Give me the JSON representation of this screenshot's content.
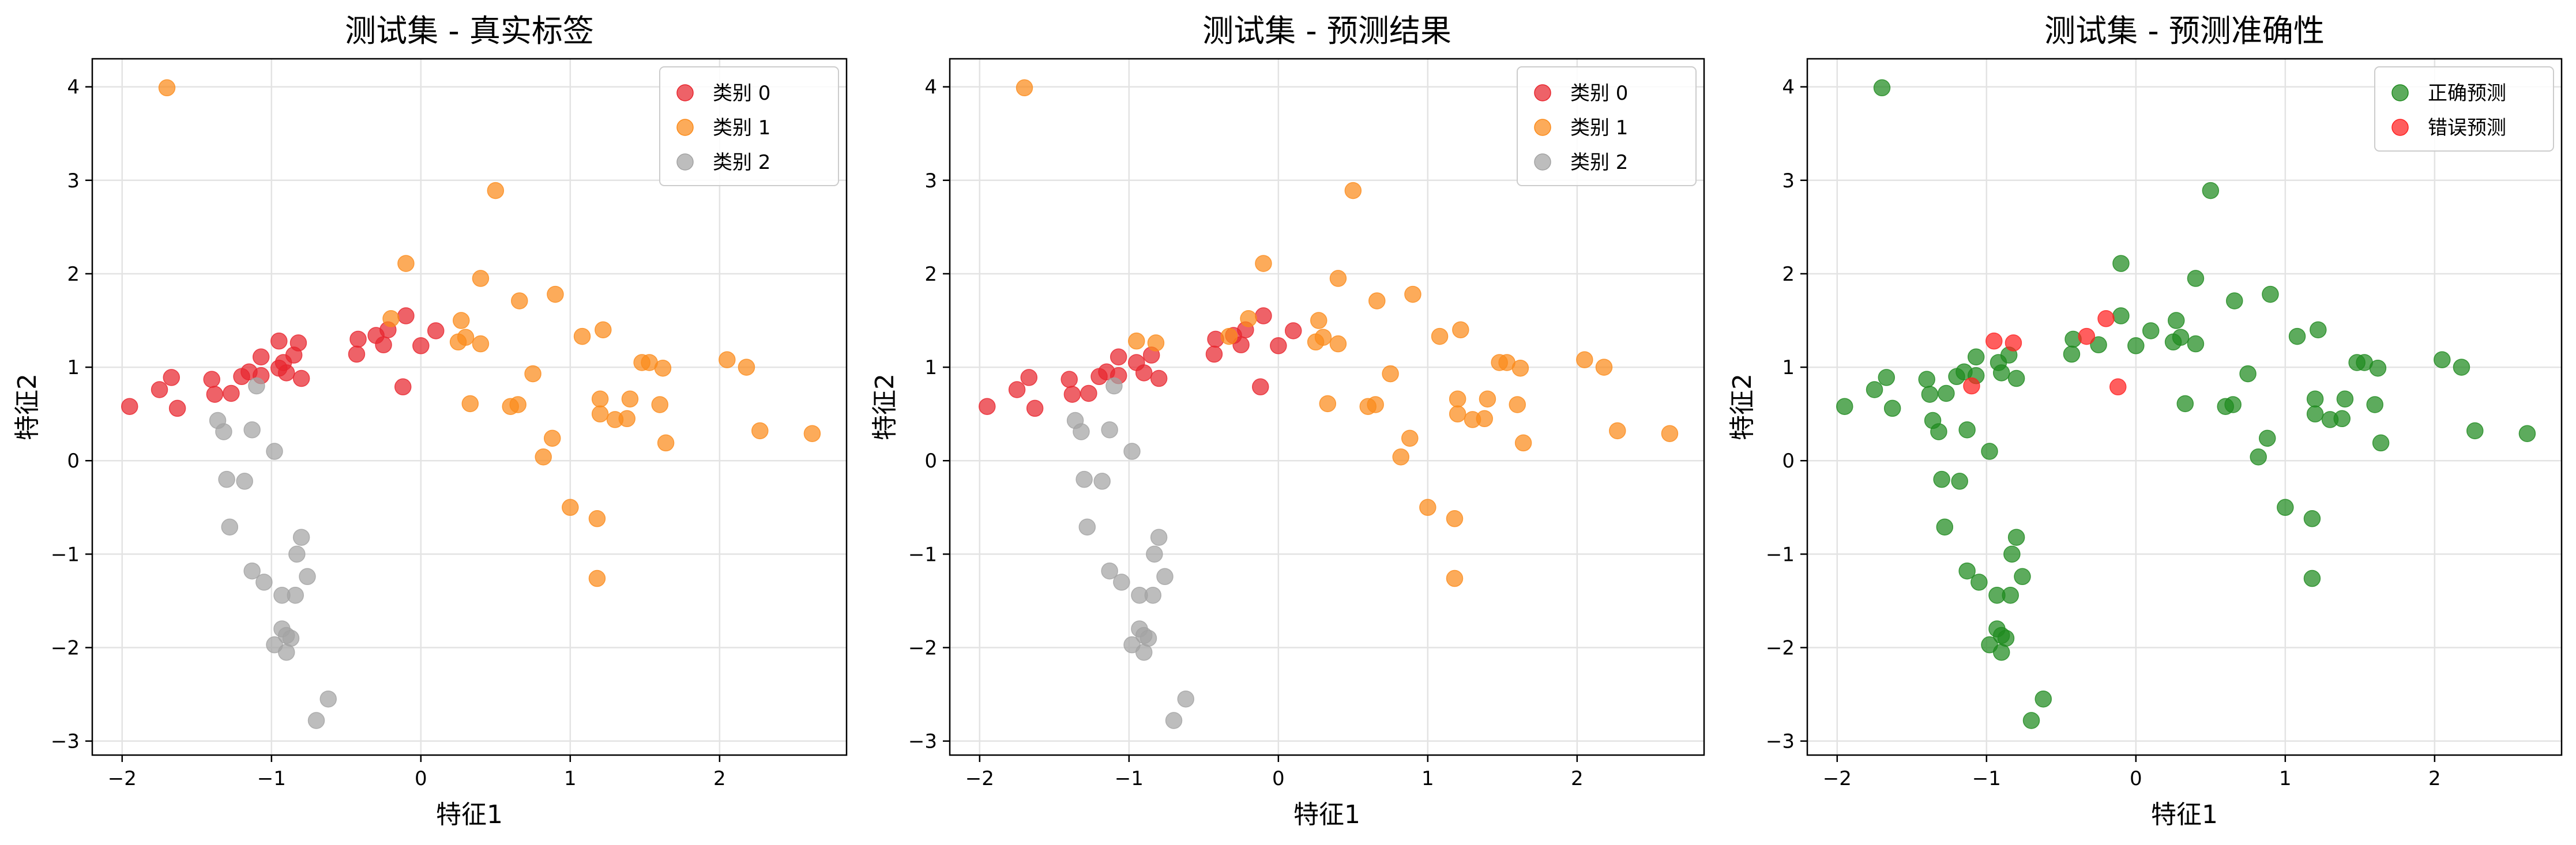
{
  "chart_data": [
    {
      "type": "scatter",
      "title": "测试集 - 真实标签",
      "xlabel": "特征1",
      "ylabel": "特征2",
      "xlim": [
        -2.2,
        2.85
      ],
      "ylim": [
        -3.15,
        4.3
      ],
      "xticks": [
        "−2",
        "−1",
        "0",
        "1",
        "2"
      ],
      "yticks": [
        "−3",
        "−2",
        "−1",
        "0",
        "1",
        "2",
        "3",
        "4"
      ],
      "grid": true,
      "legend_position": "top-right",
      "series": [
        {
          "name": "类别 0",
          "color": "#e8262e",
          "points": [
            [
              -1.95,
              0.58
            ],
            [
              -1.75,
              0.76
            ],
            [
              -1.67,
              0.89
            ],
            [
              -1.63,
              0.56
            ],
            [
              -1.4,
              0.87
            ],
            [
              -1.38,
              0.71
            ],
            [
              -1.27,
              0.72
            ],
            [
              -1.2,
              0.9
            ],
            [
              -1.15,
              0.95
            ],
            [
              -1.07,
              0.91
            ],
            [
              -1.07,
              1.11
            ],
            [
              -0.95,
              1.28
            ],
            [
              -0.95,
              0.99
            ],
            [
              -0.92,
              1.05
            ],
            [
              -0.9,
              0.94
            ],
            [
              -0.85,
              1.13
            ],
            [
              -0.82,
              1.26
            ],
            [
              -0.8,
              0.88
            ],
            [
              -0.43,
              1.14
            ],
            [
              -0.42,
              1.3
            ],
            [
              -0.3,
              1.34
            ],
            [
              -0.25,
              1.24
            ],
            [
              -0.22,
              1.4
            ],
            [
              -0.1,
              1.55
            ],
            [
              0.0,
              1.23
            ],
            [
              0.1,
              1.39
            ],
            [
              -0.12,
              0.79
            ]
          ]
        },
        {
          "name": "类别 1",
          "color": "#fb8b1a",
          "points": [
            [
              -1.7,
              3.99
            ],
            [
              -0.1,
              2.11
            ],
            [
              -0.2,
              1.52
            ],
            [
              0.25,
              1.27
            ],
            [
              0.27,
              1.5
            ],
            [
              0.3,
              1.32
            ],
            [
              0.33,
              0.61
            ],
            [
              0.4,
              1.95
            ],
            [
              0.4,
              1.25
            ],
            [
              0.5,
              2.89
            ],
            [
              0.6,
              0.58
            ],
            [
              0.65,
              0.6
            ],
            [
              0.66,
              1.71
            ],
            [
              0.75,
              0.93
            ],
            [
              0.82,
              0.04
            ],
            [
              0.88,
              0.24
            ],
            [
              0.9,
              1.78
            ],
            [
              1.0,
              -0.5
            ],
            [
              1.08,
              1.33
            ],
            [
              1.18,
              -0.62
            ],
            [
              1.18,
              -1.26
            ],
            [
              1.2,
              0.66
            ],
            [
              1.2,
              0.5
            ],
            [
              1.22,
              1.4
            ],
            [
              1.3,
              0.44
            ],
            [
              1.38,
              0.45
            ],
            [
              1.4,
              0.66
            ],
            [
              1.48,
              1.05
            ],
            [
              1.53,
              1.05
            ],
            [
              1.6,
              0.6
            ],
            [
              1.62,
              0.99
            ],
            [
              1.64,
              0.19
            ],
            [
              2.05,
              1.08
            ],
            [
              2.18,
              1.0
            ],
            [
              2.27,
              0.32
            ],
            [
              2.62,
              0.29
            ]
          ]
        },
        {
          "name": "类别 2",
          "color": "#a3a3a3",
          "points": [
            [
              -1.36,
              0.43
            ],
            [
              -1.32,
              0.31
            ],
            [
              -1.3,
              -0.2
            ],
            [
              -1.28,
              -0.71
            ],
            [
              -1.18,
              -0.22
            ],
            [
              -1.13,
              0.33
            ],
            [
              -1.1,
              0.8
            ],
            [
              -1.13,
              -1.18
            ],
            [
              -1.05,
              -1.3
            ],
            [
              -0.98,
              0.1
            ],
            [
              -0.98,
              -1.97
            ],
            [
              -0.93,
              -1.44
            ],
            [
              -0.93,
              -1.8
            ],
            [
              -0.9,
              -1.87
            ],
            [
              -0.9,
              -2.05
            ],
            [
              -0.87,
              -1.9
            ],
            [
              -0.84,
              -1.44
            ],
            [
              -0.83,
              -1.0
            ],
            [
              -0.8,
              -0.82
            ],
            [
              -0.76,
              -1.24
            ],
            [
              -0.7,
              -2.78
            ],
            [
              -0.62,
              -2.55
            ]
          ]
        }
      ]
    },
    {
      "type": "scatter",
      "title": "测试集 - 预测结果",
      "xlabel": "特征1",
      "ylabel": "特征2",
      "xlim": [
        -2.2,
        2.85
      ],
      "ylim": [
        -3.15,
        4.3
      ],
      "xticks": [
        "−2",
        "−1",
        "0",
        "1",
        "2"
      ],
      "yticks": [
        "−3",
        "−2",
        "−1",
        "0",
        "1",
        "2",
        "3",
        "4"
      ],
      "grid": true,
      "legend_position": "top-right",
      "series": [
        {
          "name": "类别 0",
          "color": "#e8262e",
          "points": [
            [
              -1.95,
              0.58
            ],
            [
              -1.75,
              0.76
            ],
            [
              -1.67,
              0.89
            ],
            [
              -1.63,
              0.56
            ],
            [
              -1.4,
              0.87
            ],
            [
              -1.38,
              0.71
            ],
            [
              -1.27,
              0.72
            ],
            [
              -1.2,
              0.9
            ],
            [
              -1.15,
              0.95
            ],
            [
              -1.07,
              0.91
            ],
            [
              -1.07,
              1.11
            ],
            [
              -0.95,
              1.05
            ],
            [
              -0.9,
              0.94
            ],
            [
              -0.85,
              1.13
            ],
            [
              -0.8,
              0.88
            ],
            [
              -0.43,
              1.14
            ],
            [
              -0.42,
              1.3
            ],
            [
              -0.3,
              1.34
            ],
            [
              -0.25,
              1.24
            ],
            [
              -0.22,
              1.4
            ],
            [
              -0.1,
              1.55
            ],
            [
              0.0,
              1.23
            ],
            [
              0.1,
              1.39
            ],
            [
              -0.12,
              0.79
            ]
          ]
        },
        {
          "name": "类别 1",
          "color": "#fb8b1a",
          "points": [
            [
              -1.7,
              3.99
            ],
            [
              -0.95,
              1.28
            ],
            [
              -0.82,
              1.26
            ],
            [
              -0.33,
              1.33
            ],
            [
              -0.1,
              2.11
            ],
            [
              -0.2,
              1.52
            ],
            [
              0.25,
              1.27
            ],
            [
              0.27,
              1.5
            ],
            [
              0.3,
              1.32
            ],
            [
              0.33,
              0.61
            ],
            [
              0.4,
              1.95
            ],
            [
              0.4,
              1.25
            ],
            [
              0.5,
              2.89
            ],
            [
              0.6,
              0.58
            ],
            [
              0.65,
              0.6
            ],
            [
              0.66,
              1.71
            ],
            [
              0.75,
              0.93
            ],
            [
              0.82,
              0.04
            ],
            [
              0.88,
              0.24
            ],
            [
              0.9,
              1.78
            ],
            [
              1.0,
              -0.5
            ],
            [
              1.08,
              1.33
            ],
            [
              1.18,
              -0.62
            ],
            [
              1.18,
              -1.26
            ],
            [
              1.2,
              0.66
            ],
            [
              1.2,
              0.5
            ],
            [
              1.22,
              1.4
            ],
            [
              1.3,
              0.44
            ],
            [
              1.38,
              0.45
            ],
            [
              1.4,
              0.66
            ],
            [
              1.48,
              1.05
            ],
            [
              1.53,
              1.05
            ],
            [
              1.6,
              0.6
            ],
            [
              1.62,
              0.99
            ],
            [
              1.64,
              0.19
            ],
            [
              2.05,
              1.08
            ],
            [
              2.18,
              1.0
            ],
            [
              2.27,
              0.32
            ],
            [
              2.62,
              0.29
            ]
          ]
        },
        {
          "name": "类别 2",
          "color": "#a3a3a3",
          "points": [
            [
              -1.36,
              0.43
            ],
            [
              -1.32,
              0.31
            ],
            [
              -1.3,
              -0.2
            ],
            [
              -1.28,
              -0.71
            ],
            [
              -1.18,
              -0.22
            ],
            [
              -1.13,
              0.33
            ],
            [
              -1.1,
              0.8
            ],
            [
              -1.13,
              -1.18
            ],
            [
              -1.05,
              -1.3
            ],
            [
              -0.98,
              0.1
            ],
            [
              -0.98,
              -1.97
            ],
            [
              -0.93,
              -1.44
            ],
            [
              -0.93,
              -1.8
            ],
            [
              -0.9,
              -1.87
            ],
            [
              -0.9,
              -2.05
            ],
            [
              -0.87,
              -1.9
            ],
            [
              -0.84,
              -1.44
            ],
            [
              -0.83,
              -1.0
            ],
            [
              -0.8,
              -0.82
            ],
            [
              -0.76,
              -1.24
            ],
            [
              -0.7,
              -2.78
            ],
            [
              -0.62,
              -2.55
            ]
          ]
        }
      ]
    },
    {
      "type": "scatter",
      "title": "测试集 - 预测准确性",
      "xlabel": "特征1",
      "ylabel": "特征2",
      "xlim": [
        -2.2,
        2.85
      ],
      "ylim": [
        -3.15,
        4.3
      ],
      "xticks": [
        "−2",
        "−1",
        "0",
        "1",
        "2"
      ],
      "yticks": [
        "−3",
        "−2",
        "−1",
        "0",
        "1",
        "2",
        "3",
        "4"
      ],
      "grid": true,
      "legend_position": "top-right",
      "series": [
        {
          "name": "正确预测",
          "color": "#1e8a1e",
          "points": [
            [
              -1.95,
              0.58
            ],
            [
              -1.75,
              0.76
            ],
            [
              -1.67,
              0.89
            ],
            [
              -1.63,
              0.56
            ],
            [
              -1.4,
              0.87
            ],
            [
              -1.38,
              0.71
            ],
            [
              -1.27,
              0.72
            ],
            [
              -1.2,
              0.9
            ],
            [
              -1.15,
              0.95
            ],
            [
              -1.07,
              0.91
            ],
            [
              -1.07,
              1.11
            ],
            [
              -0.92,
              1.05
            ],
            [
              -0.9,
              0.94
            ],
            [
              -0.85,
              1.13
            ],
            [
              -0.8,
              0.88
            ],
            [
              -0.43,
              1.14
            ],
            [
              -0.42,
              1.3
            ],
            [
              -0.25,
              1.24
            ],
            [
              -0.1,
              1.55
            ],
            [
              0.0,
              1.23
            ],
            [
              0.1,
              1.39
            ],
            [
              -1.7,
              3.99
            ],
            [
              -0.1,
              2.11
            ],
            [
              0.25,
              1.27
            ],
            [
              0.27,
              1.5
            ],
            [
              0.3,
              1.32
            ],
            [
              0.33,
              0.61
            ],
            [
              0.4,
              1.95
            ],
            [
              0.4,
              1.25
            ],
            [
              0.5,
              2.89
            ],
            [
              0.6,
              0.58
            ],
            [
              0.65,
              0.6
            ],
            [
              0.66,
              1.71
            ],
            [
              0.75,
              0.93
            ],
            [
              0.82,
              0.04
            ],
            [
              0.88,
              0.24
            ],
            [
              0.9,
              1.78
            ],
            [
              1.0,
              -0.5
            ],
            [
              1.08,
              1.33
            ],
            [
              1.18,
              -0.62
            ],
            [
              1.18,
              -1.26
            ],
            [
              1.2,
              0.66
            ],
            [
              1.2,
              0.5
            ],
            [
              1.22,
              1.4
            ],
            [
              1.3,
              0.44
            ],
            [
              1.38,
              0.45
            ],
            [
              1.4,
              0.66
            ],
            [
              1.48,
              1.05
            ],
            [
              1.53,
              1.05
            ],
            [
              1.6,
              0.6
            ],
            [
              1.62,
              0.99
            ],
            [
              1.64,
              0.19
            ],
            [
              2.05,
              1.08
            ],
            [
              2.18,
              1.0
            ],
            [
              2.27,
              0.32
            ],
            [
              2.62,
              0.29
            ],
            [
              -1.36,
              0.43
            ],
            [
              -1.32,
              0.31
            ],
            [
              -1.3,
              -0.2
            ],
            [
              -1.28,
              -0.71
            ],
            [
              -1.18,
              -0.22
            ],
            [
              -1.13,
              0.33
            ],
            [
              -1.13,
              -1.18
            ],
            [
              -1.05,
              -1.3
            ],
            [
              -0.98,
              0.1
            ],
            [
              -0.98,
              -1.97
            ],
            [
              -0.93,
              -1.44
            ],
            [
              -0.93,
              -1.8
            ],
            [
              -0.9,
              -1.87
            ],
            [
              -0.9,
              -2.05
            ],
            [
              -0.87,
              -1.9
            ],
            [
              -0.84,
              -1.44
            ],
            [
              -0.83,
              -1.0
            ],
            [
              -0.8,
              -0.82
            ],
            [
              -0.76,
              -1.24
            ],
            [
              -0.7,
              -2.78
            ],
            [
              -0.62,
              -2.55
            ]
          ]
        },
        {
          "name": "错误预测",
          "color": "#ff2020",
          "points": [
            [
              -1.1,
              0.8
            ],
            [
              -0.95,
              1.28
            ],
            [
              -0.82,
              1.26
            ],
            [
              -0.33,
              1.33
            ],
            [
              -0.2,
              1.52
            ],
            [
              -0.12,
              0.79
            ]
          ]
        }
      ]
    }
  ]
}
